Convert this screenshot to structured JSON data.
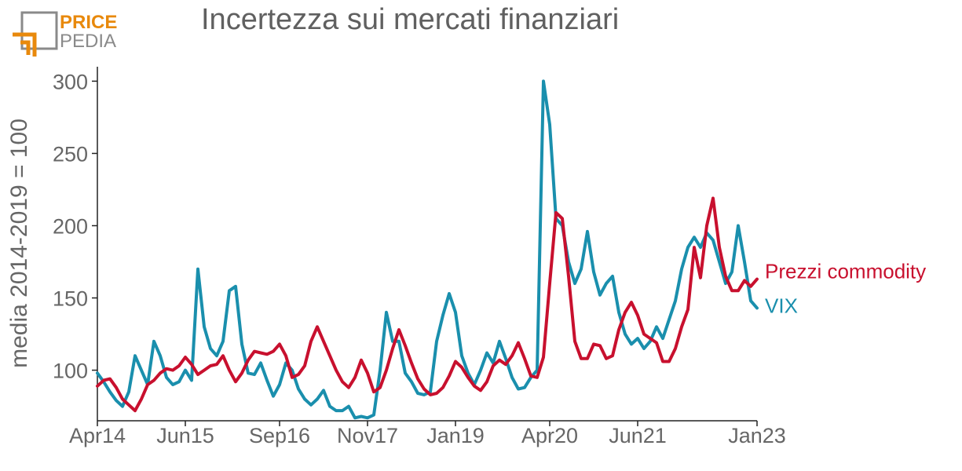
{
  "logo": {
    "line1": "PRICE",
    "line2": "PEDIA",
    "accent": "#e8890c",
    "gray": "#8a8a8a"
  },
  "chart_data": {
    "type": "line",
    "title": "Incertezza sui mercati finanziari",
    "xlabel": "",
    "ylabel": "media 2014-2019 = 100",
    "xlim": [
      "2014-04",
      "2023-01"
    ],
    "ylim": [
      65,
      310
    ],
    "y_ticks": [
      100,
      150,
      200,
      250,
      300
    ],
    "x_ticks": [
      "2014-04",
      "2015-06",
      "2016-09",
      "2017-11",
      "2019-01",
      "2020-04",
      "2021-06",
      "2023-01"
    ],
    "x_tick_labels": [
      "Apr14",
      "Jun15",
      "Sep16",
      "Nov17",
      "Jan19",
      "Apr20",
      "Jun21",
      "Jan23"
    ],
    "grid": false,
    "legend": "inline labels at right end of lines",
    "series": [
      {
        "name": "Prezzi commodity",
        "color": "#c8102e",
        "points": [
          [
            "2014-04",
            89
          ],
          [
            "2014-05",
            93
          ],
          [
            "2014-06",
            94
          ],
          [
            "2014-07",
            88
          ],
          [
            "2014-08",
            80
          ],
          [
            "2014-09",
            76
          ],
          [
            "2014-10",
            72
          ],
          [
            "2014-11",
            80
          ],
          [
            "2014-12",
            90
          ],
          [
            "2015-01",
            93
          ],
          [
            "2015-02",
            98
          ],
          [
            "2015-03",
            101
          ],
          [
            "2015-04",
            100
          ],
          [
            "2015-05",
            103
          ],
          [
            "2015-06",
            109
          ],
          [
            "2015-07",
            104
          ],
          [
            "2015-08",
            97
          ],
          [
            "2015-09",
            100
          ],
          [
            "2015-10",
            103
          ],
          [
            "2015-11",
            104
          ],
          [
            "2015-12",
            110
          ],
          [
            "2016-01",
            100
          ],
          [
            "2016-02",
            92
          ],
          [
            "2016-03",
            98
          ],
          [
            "2016-04",
            107
          ],
          [
            "2016-05",
            113
          ],
          [
            "2016-06",
            112
          ],
          [
            "2016-07",
            111
          ],
          [
            "2016-08",
            113
          ],
          [
            "2016-09",
            118
          ],
          [
            "2016-10",
            110
          ],
          [
            "2016-11",
            95
          ],
          [
            "2016-12",
            97
          ],
          [
            "2017-01",
            103
          ],
          [
            "2017-02",
            120
          ],
          [
            "2017-03",
            130
          ],
          [
            "2017-04",
            120
          ],
          [
            "2017-05",
            110
          ],
          [
            "2017-06",
            100
          ],
          [
            "2017-07",
            92
          ],
          [
            "2017-08",
            88
          ],
          [
            "2017-09",
            95
          ],
          [
            "2017-10",
            107
          ],
          [
            "2017-11",
            98
          ],
          [
            "2017-12",
            85
          ],
          [
            "2018-01",
            88
          ],
          [
            "2018-02",
            100
          ],
          [
            "2018-03",
            115
          ],
          [
            "2018-04",
            128
          ],
          [
            "2018-05",
            117
          ],
          [
            "2018-06",
            105
          ],
          [
            "2018-07",
            94
          ],
          [
            "2018-08",
            87
          ],
          [
            "2018-09",
            83
          ],
          [
            "2018-10",
            84
          ],
          [
            "2018-11",
            88
          ],
          [
            "2018-12",
            96
          ],
          [
            "2019-01",
            106
          ],
          [
            "2019-02",
            102
          ],
          [
            "2019-03",
            95
          ],
          [
            "2019-04",
            89
          ],
          [
            "2019-05",
            86
          ],
          [
            "2019-06",
            92
          ],
          [
            "2019-07",
            103
          ],
          [
            "2019-08",
            107
          ],
          [
            "2019-09",
            104
          ],
          [
            "2019-10",
            110
          ],
          [
            "2019-11",
            119
          ],
          [
            "2019-12",
            108
          ],
          [
            "2020-01",
            96
          ],
          [
            "2020-02",
            95
          ],
          [
            "2020-03",
            109
          ],
          [
            "2020-04",
            160
          ],
          [
            "2020-05",
            209
          ],
          [
            "2020-06",
            205
          ],
          [
            "2020-07",
            165
          ],
          [
            "2020-08",
            120
          ],
          [
            "2020-09",
            108
          ],
          [
            "2020-10",
            108
          ],
          [
            "2020-11",
            118
          ],
          [
            "2020-12",
            117
          ],
          [
            "2021-01",
            108
          ],
          [
            "2021-02",
            110
          ],
          [
            "2021-03",
            128
          ],
          [
            "2021-04",
            140
          ],
          [
            "2021-05",
            147
          ],
          [
            "2021-06",
            138
          ],
          [
            "2021-07",
            125
          ],
          [
            "2021-08",
            122
          ],
          [
            "2021-09",
            119
          ],
          [
            "2021-10",
            106
          ],
          [
            "2021-11",
            106
          ],
          [
            "2021-12",
            115
          ],
          [
            "2022-01",
            130
          ],
          [
            "2022-02",
            142
          ],
          [
            "2022-03",
            185
          ],
          [
            "2022-04",
            164
          ],
          [
            "2022-05",
            200
          ],
          [
            "2022-06",
            219
          ],
          [
            "2022-07",
            185
          ],
          [
            "2022-08",
            165
          ],
          [
            "2022-09",
            155
          ],
          [
            "2022-10",
            155
          ],
          [
            "2022-11",
            162
          ],
          [
            "2022-12",
            158
          ],
          [
            "2023-01",
            163
          ]
        ]
      },
      {
        "name": "VIX",
        "color": "#1a8fad",
        "points": [
          [
            "2014-04",
            98
          ],
          [
            "2014-05",
            92
          ],
          [
            "2014-06",
            85
          ],
          [
            "2014-07",
            79
          ],
          [
            "2014-08",
            75
          ],
          [
            "2014-09",
            85
          ],
          [
            "2014-10",
            110
          ],
          [
            "2014-11",
            100
          ],
          [
            "2014-12",
            90
          ],
          [
            "2015-01",
            120
          ],
          [
            "2015-02",
            110
          ],
          [
            "2015-03",
            95
          ],
          [
            "2015-04",
            90
          ],
          [
            "2015-05",
            92
          ],
          [
            "2015-06",
            100
          ],
          [
            "2015-07",
            93
          ],
          [
            "2015-08",
            170
          ],
          [
            "2015-09",
            130
          ],
          [
            "2015-10",
            115
          ],
          [
            "2015-11",
            110
          ],
          [
            "2015-12",
            120
          ],
          [
            "2016-01",
            155
          ],
          [
            "2016-02",
            158
          ],
          [
            "2016-03",
            118
          ],
          [
            "2016-04",
            98
          ],
          [
            "2016-05",
            97
          ],
          [
            "2016-06",
            105
          ],
          [
            "2016-07",
            93
          ],
          [
            "2016-08",
            82
          ],
          [
            "2016-09",
            90
          ],
          [
            "2016-10",
            105
          ],
          [
            "2016-11",
            100
          ],
          [
            "2016-12",
            87
          ],
          [
            "2017-01",
            80
          ],
          [
            "2017-02",
            76
          ],
          [
            "2017-03",
            80
          ],
          [
            "2017-04",
            86
          ],
          [
            "2017-05",
            75
          ],
          [
            "2017-06",
            72
          ],
          [
            "2017-07",
            72
          ],
          [
            "2017-08",
            75
          ],
          [
            "2017-09",
            67
          ],
          [
            "2017-10",
            68
          ],
          [
            "2017-11",
            67
          ],
          [
            "2017-12",
            69
          ],
          [
            "2018-01",
            100
          ],
          [
            "2018-02",
            140
          ],
          [
            "2018-03",
            120
          ],
          [
            "2018-04",
            120
          ],
          [
            "2018-05",
            98
          ],
          [
            "2018-06",
            92
          ],
          [
            "2018-07",
            84
          ],
          [
            "2018-08",
            83
          ],
          [
            "2018-09",
            85
          ],
          [
            "2018-10",
            120
          ],
          [
            "2018-11",
            138
          ],
          [
            "2018-12",
            153
          ],
          [
            "2019-01",
            140
          ],
          [
            "2019-02",
            110
          ],
          [
            "2019-03",
            98
          ],
          [
            "2019-04",
            90
          ],
          [
            "2019-05",
            100
          ],
          [
            "2019-06",
            112
          ],
          [
            "2019-07",
            105
          ],
          [
            "2019-08",
            120
          ],
          [
            "2019-09",
            108
          ],
          [
            "2019-10",
            95
          ],
          [
            "2019-11",
            87
          ],
          [
            "2019-12",
            88
          ],
          [
            "2020-01",
            95
          ],
          [
            "2020-02",
            100
          ],
          [
            "2020-03",
            300
          ],
          [
            "2020-04",
            270
          ],
          [
            "2020-05",
            205
          ],
          [
            "2020-06",
            200
          ],
          [
            "2020-07",
            175
          ],
          [
            "2020-08",
            160
          ],
          [
            "2020-09",
            170
          ],
          [
            "2020-10",
            196
          ],
          [
            "2020-11",
            168
          ],
          [
            "2020-12",
            152
          ],
          [
            "2021-01",
            160
          ],
          [
            "2021-02",
            165
          ],
          [
            "2021-03",
            140
          ],
          [
            "2021-04",
            125
          ],
          [
            "2021-05",
            118
          ],
          [
            "2021-06",
            122
          ],
          [
            "2021-07",
            115
          ],
          [
            "2021-08",
            120
          ],
          [
            "2021-09",
            130
          ],
          [
            "2021-10",
            122
          ],
          [
            "2021-11",
            135
          ],
          [
            "2021-12",
            148
          ],
          [
            "2022-01",
            170
          ],
          [
            "2022-02",
            185
          ],
          [
            "2022-03",
            192
          ],
          [
            "2022-04",
            185
          ],
          [
            "2022-05",
            195
          ],
          [
            "2022-06",
            190
          ],
          [
            "2022-07",
            175
          ],
          [
            "2022-08",
            160
          ],
          [
            "2022-09",
            168
          ],
          [
            "2022-10",
            200
          ],
          [
            "2022-11",
            175
          ],
          [
            "2022-12",
            148
          ],
          [
            "2023-01",
            143
          ]
        ]
      }
    ]
  }
}
